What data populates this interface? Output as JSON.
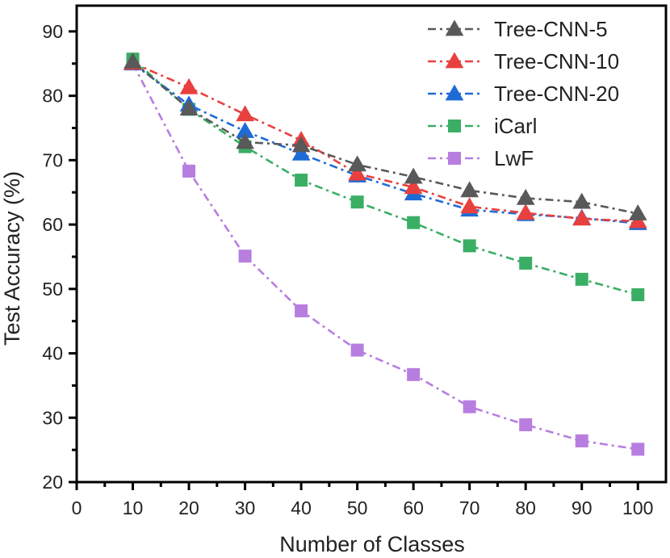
{
  "chart_data": {
    "type": "line",
    "title": "",
    "xlabel": "Number of Classes",
    "ylabel": "Test Accuracy (%)",
    "xlim": [
      0,
      105
    ],
    "ylim": [
      20,
      94
    ],
    "xticks": [
      0,
      10,
      20,
      30,
      40,
      50,
      60,
      70,
      80,
      90,
      100
    ],
    "yticks": [
      20,
      30,
      40,
      50,
      60,
      70,
      80,
      90
    ],
    "x": [
      10,
      20,
      30,
      40,
      50,
      60,
      70,
      80,
      90,
      100
    ],
    "legend_position": "top-right",
    "series": [
      {
        "name": "Tree-CNN-5",
        "color": "#595959",
        "marker": "triangle",
        "values": [
          85.3,
          78.0,
          72.8,
          72.3,
          69.3,
          67.4,
          65.3,
          64.1,
          63.5,
          61.7
        ]
      },
      {
        "name": "Tree-CNN-10",
        "color": "#e8403f",
        "marker": "triangle",
        "values": [
          85.1,
          81.3,
          77.1,
          73.1,
          67.9,
          65.8,
          62.8,
          61.8,
          60.9,
          60.5
        ]
      },
      {
        "name": "Tree-CNN-20",
        "color": "#1f6bd6",
        "marker": "triangle",
        "values": [
          85.0,
          78.6,
          74.5,
          71.0,
          67.6,
          64.8,
          62.3,
          61.6,
          61.0,
          60.2
        ]
      },
      {
        "name": "iCarl",
        "color": "#3aae65",
        "marker": "square",
        "values": [
          85.7,
          77.9,
          72.1,
          66.9,
          63.5,
          60.3,
          56.7,
          54.0,
          51.5,
          49.1
        ]
      },
      {
        "name": "LwF",
        "color": "#b77ee0",
        "marker": "square",
        "values": [
          85.0,
          68.3,
          55.1,
          46.6,
          40.5,
          36.7,
          31.7,
          28.9,
          26.4,
          25.1
        ]
      }
    ]
  }
}
